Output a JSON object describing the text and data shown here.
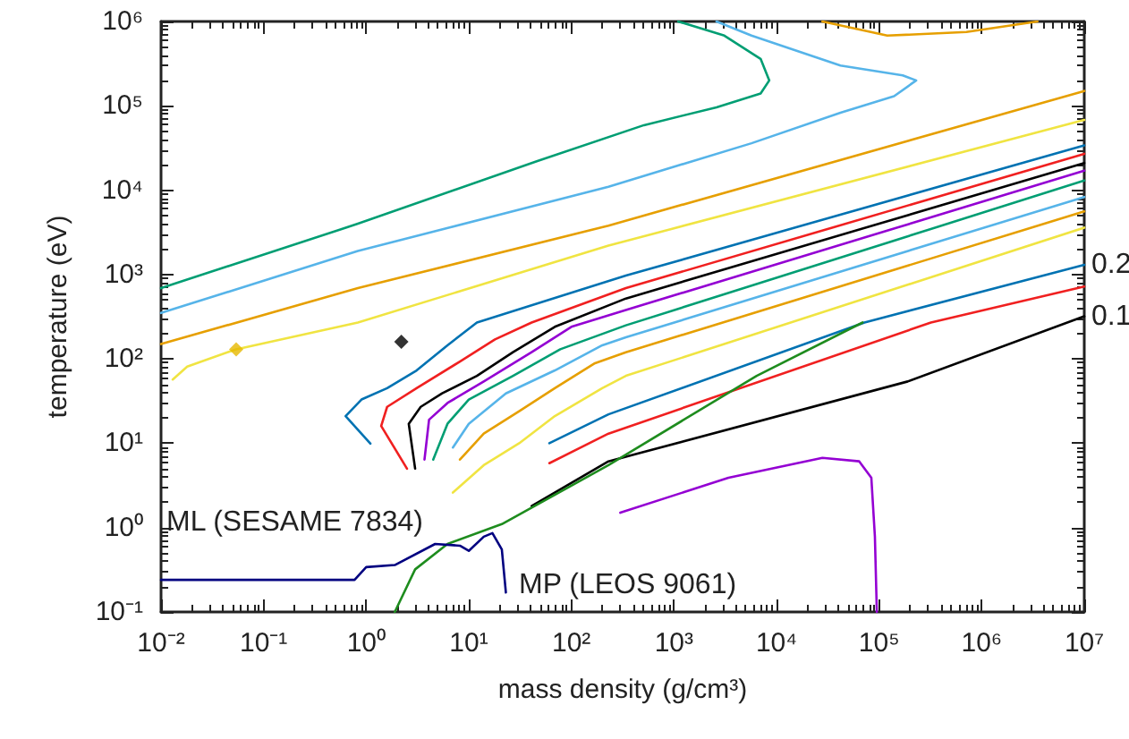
{
  "chart_data": {
    "type": "line",
    "xlabel": "mass density (g/cm³)",
    "ylabel": "temperature (eV)",
    "log": "xy",
    "grid": false,
    "marker": "none",
    "line_style": "solid",
    "xlim": [
      0.01,
      10000000
    ],
    "ylim": [
      0.1,
      1000000
    ],
    "xticks": [
      {
        "value": 0.01,
        "label": "10⁻²"
      },
      {
        "value": 0.1,
        "label": "10⁻¹"
      },
      {
        "value": 1,
        "label": "10⁰"
      },
      {
        "value": 10,
        "label": "10¹"
      },
      {
        "value": 100,
        "label": "10²"
      },
      {
        "value": 1000,
        "label": "10³"
      },
      {
        "value": 10000,
        "label": "10⁴"
      },
      {
        "value": 100000,
        "label": "10⁵"
      },
      {
        "value": 1000000,
        "label": "10⁶"
      },
      {
        "value": 10000000,
        "label": "10⁷"
      }
    ],
    "yticks": [
      {
        "value": 0.1,
        "label": "10⁻¹"
      },
      {
        "value": 1,
        "label": "10⁰"
      },
      {
        "value": 10,
        "label": "10¹"
      },
      {
        "value": 100,
        "label": "10²"
      },
      {
        "value": 1000,
        "label": "10³"
      },
      {
        "value": 10000,
        "label": "10⁴"
      },
      {
        "value": 100000,
        "label": "10⁵"
      },
      {
        "value": 1000000,
        "label": "10⁶"
      }
    ],
    "series": [
      {
        "color": "#009e73",
        "x": [
          0.01,
          0.83,
          46,
          510,
          2600,
          7000,
          8500,
          7000,
          3100,
          1100
        ],
        "values": [
          690,
          4000,
          22000,
          59000,
          96000,
          140000,
          200000,
          360000,
          680000,
          1000000
        ]
      },
      {
        "color": "#56b4e9",
        "x": [
          0.01,
          0.83,
          230,
          5700,
          42000,
          140000,
          230000,
          170000,
          42000,
          5700,
          2600
        ],
        "values": [
          350,
          1900,
          11000,
          36000,
          83000,
          130000,
          200000,
          230000,
          300000,
          680000,
          1000000
        ]
      },
      {
        "color": "#e69f00",
        "x": [
          0.01,
          0.83,
          230,
          10000000
        ],
        "values": [
          150,
          690,
          3800,
          150000
        ]
      },
      {
        "color": "#e69f00",
        "x": [
          28000,
          120000,
          710000,
          3500000
        ],
        "values": [
          1000000,
          680000,
          750000,
          1000000
        ]
      },
      {
        "color": "#f0e442",
        "x": [
          0.013,
          0.018,
          0.054,
          0.83,
          230,
          10000000
        ],
        "values": [
          57,
          81,
          130,
          270,
          2200,
          68000
        ]
      },
      {
        "color": "#0072b2",
        "x": [
          1.1,
          0.63,
          0.9,
          1.6,
          3.1,
          6.2,
          12,
          340,
          10000000
        ],
        "values": [
          9.9,
          21,
          33,
          45,
          73,
          145,
          270,
          970,
          34000
        ]
      },
      {
        "color": "#f02020",
        "x": [
          2.5,
          1.4,
          1.6,
          3.1,
          8.2,
          18,
          41,
          340,
          10000000
        ],
        "values": [
          5.0,
          16,
          27,
          45,
          93,
          170,
          270,
          690,
          27000
        ]
      },
      {
        "color": "#000000",
        "x": [
          3.0,
          2.6,
          3.4,
          5.5,
          12,
          27,
          69,
          340,
          10000000
        ],
        "values": [
          5.0,
          17,
          27,
          39,
          63,
          120,
          240,
          520,
          21000
        ]
      },
      {
        "color": "#9400d3",
        "x": [
          3.7,
          4.1,
          6.2,
          14,
          41,
          100,
          340,
          10000000
        ],
        "values": [
          6.4,
          19,
          30,
          54,
          120,
          240,
          380,
          17000
        ]
      },
      {
        "color": "#009e73",
        "x": [
          4.5,
          6.2,
          10,
          27,
          78,
          340,
          10000000
        ],
        "values": [
          6.4,
          17,
          33,
          63,
          130,
          250,
          13000
        ]
      },
      {
        "color": "#56b4e9",
        "x": [
          7.0,
          10,
          23,
          69,
          200,
          340,
          10000000
        ],
        "values": [
          8.9,
          17,
          39,
          73,
          145,
          180,
          8300
        ]
      },
      {
        "color": "#e69f00",
        "x": [
          8.2,
          14,
          31,
          69,
          170,
          340,
          10000000
        ],
        "values": [
          6.4,
          13,
          24,
          45,
          89,
          120,
          5600
        ]
      },
      {
        "color": "#f0e442",
        "x": [
          7.0,
          14,
          31,
          69,
          200,
          340,
          10000000
        ],
        "values": [
          2.6,
          5.5,
          10,
          21,
          45,
          63,
          3600
        ]
      },
      {
        "color": "#0072b2",
        "x": [
          61,
          230,
          72000,
          10000000
        ],
        "values": [
          10,
          22,
          270,
          1300
        ]
      },
      {
        "color": "#f02020",
        "x": [
          61,
          230,
          320000,
          10000000
        ],
        "values": [
          5.8,
          13,
          270,
          720
        ]
      },
      {
        "color": "#000000",
        "x": [
          41,
          230,
          190000,
          10000000
        ],
        "values": [
          1.8,
          6.1,
          54,
          320
        ]
      },
      {
        "color": "#1e8c1e",
        "x": [
          1.9,
          3.0,
          6.2,
          21,
          230,
          6400,
          69000
        ],
        "values": [
          0.1,
          0.32,
          0.64,
          1.1,
          5.5,
          63,
          270
        ]
      },
      {
        "color": "#9400d3",
        "x": [
          300,
          3400,
          28000,
          64000,
          84000,
          91000,
          95000
        ],
        "values": [
          1.5,
          3.9,
          6.7,
          6.1,
          3.9,
          0.78,
          0.1
        ]
      },
      {
        "color": "#000080",
        "x": [
          0.01,
          0.77,
          1.0,
          1.9,
          4.7,
          8.2,
          10,
          14,
          17,
          21,
          23
        ],
        "values": [
          0.24,
          0.24,
          0.34,
          0.36,
          0.64,
          0.61,
          0.53,
          0.78,
          0.86,
          0.55,
          0.17
        ]
      },
      {
        "type": "scatter",
        "marker": "diamond",
        "color": "#e6b800",
        "x": [
          0.054
        ],
        "values": [
          130
        ]
      },
      {
        "type": "scatter",
        "marker": "diamond",
        "color": "#000000",
        "x": [
          2.2
        ],
        "values": [
          160
        ]
      }
    ],
    "annotations": [
      {
        "text": "0.2",
        "x": 10000000,
        "y": 1300
      },
      {
        "text": "0.1",
        "x": 10000000,
        "y": 320
      },
      "ML (SESAME 7834)",
      "MP (LEOS 9061)"
    ]
  }
}
